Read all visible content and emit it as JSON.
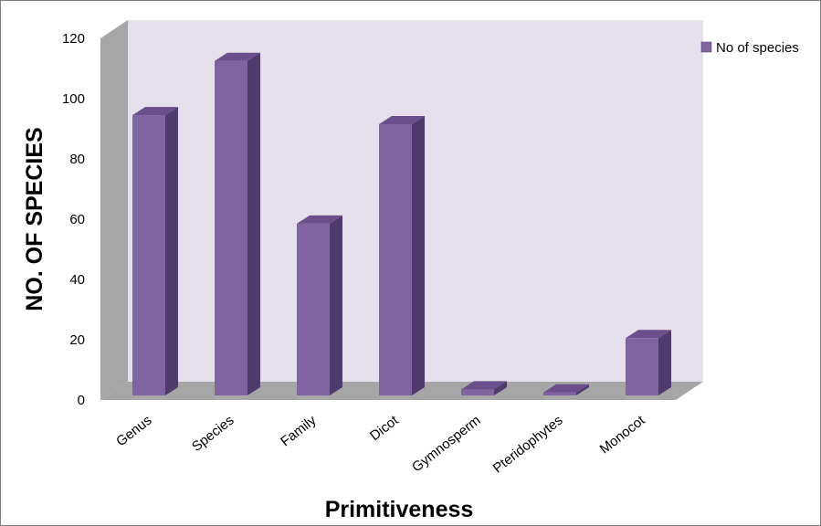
{
  "chart_data": {
    "type": "bar",
    "title": "",
    "xlabel": "Primitiveness",
    "ylabel": "NO. OF SPECIES",
    "categories": [
      "Genus",
      "Species",
      "Family",
      "Dicot",
      "Gymnosperm",
      "Pteridophytes",
      "Monocot"
    ],
    "series": [
      {
        "name": "No of species",
        "values": [
          93,
          111,
          57,
          90,
          2,
          1,
          19
        ]
      }
    ],
    "ylim": [
      0,
      120
    ],
    "yticks": [
      "0",
      "20",
      "40",
      "60",
      "80",
      "100",
      "120"
    ],
    "grid": false,
    "legend": "top-right",
    "colors": {
      "bar_front": "#8064A2",
      "bar_top": "#6A4F8C",
      "bar_side": "#4F3A6C",
      "back_wall": "#E6E0EC",
      "side_wall": "#A6A6A6",
      "floor": "#A6A6A6"
    }
  }
}
